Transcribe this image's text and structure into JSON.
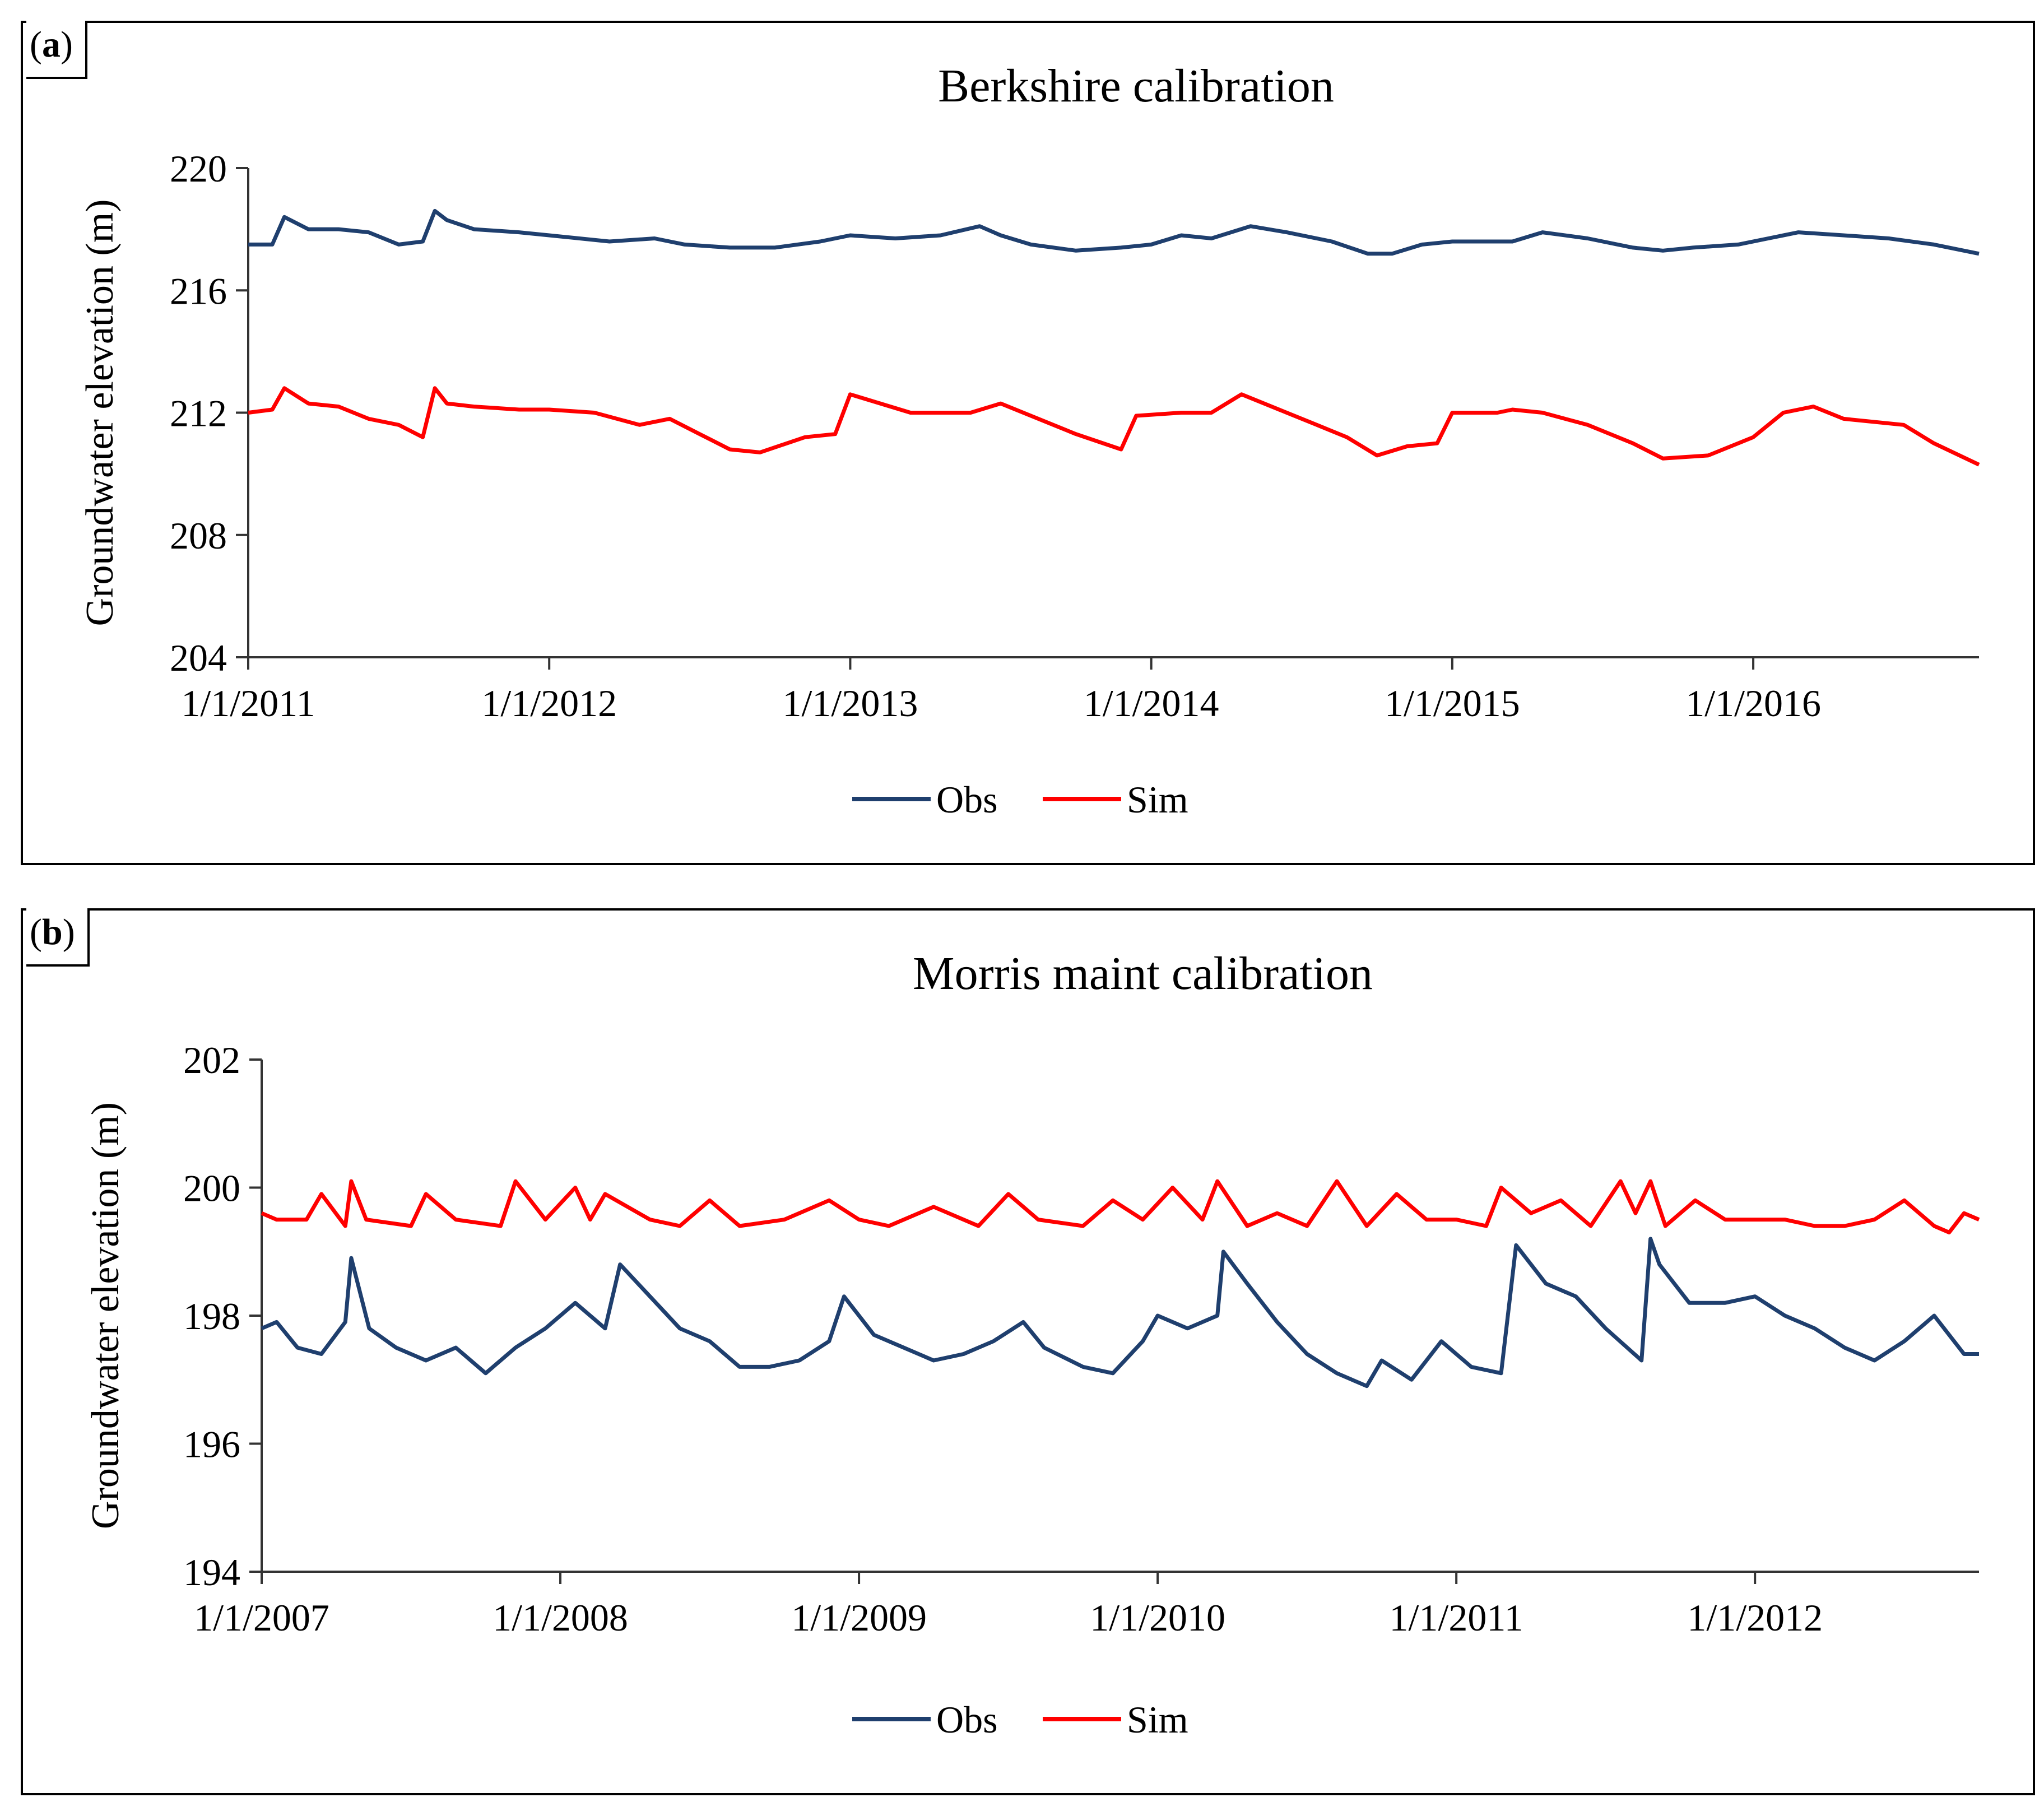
{
  "chart_data": [
    {
      "type": "line",
      "panel_label": "a",
      "title": "Berkshire calibration",
      "xlabel": "",
      "ylabel": "Groundwater elevation (m)",
      "ylim": [
        204,
        220
      ],
      "yticks": [
        204,
        208,
        212,
        216,
        220
      ],
      "xlim": [
        2011.0,
        2016.75
      ],
      "xticks": [
        {
          "value": 2011.0,
          "label": "1/1/2011"
        },
        {
          "value": 2012.0,
          "label": "1/1/2012"
        },
        {
          "value": 2013.0,
          "label": "1/1/2013"
        },
        {
          "value": 2014.0,
          "label": "1/1/2014"
        },
        {
          "value": 2015.0,
          "label": "1/1/2015"
        },
        {
          "value": 2016.0,
          "label": "1/1/2016"
        }
      ],
      "legend": [
        "Obs",
        "Sim"
      ],
      "series": [
        {
          "name": "Obs",
          "color": "#1f3f6e",
          "x": [
            2011.0,
            2011.08,
            2011.12,
            2011.2,
            2011.3,
            2011.4,
            2011.5,
            2011.58,
            2011.62,
            2011.66,
            2011.75,
            2011.9,
            2012.0,
            2012.2,
            2012.35,
            2012.45,
            2012.6,
            2012.75,
            2012.9,
            2013.0,
            2013.15,
            2013.3,
            2013.43,
            2013.5,
            2013.6,
            2013.75,
            2013.9,
            2014.0,
            2014.1,
            2014.2,
            2014.33,
            2014.45,
            2014.6,
            2014.72,
            2014.8,
            2014.9,
            2015.0,
            2015.1,
            2015.2,
            2015.3,
            2015.45,
            2015.6,
            2015.7,
            2015.8,
            2015.95,
            2016.05,
            2016.15,
            2016.3,
            2016.45,
            2016.6,
            2016.75
          ],
          "y": [
            217.5,
            217.5,
            218.4,
            218.0,
            218.0,
            217.9,
            217.5,
            217.6,
            218.6,
            218.3,
            218.0,
            217.9,
            217.8,
            217.6,
            217.7,
            217.5,
            217.4,
            217.4,
            217.6,
            217.8,
            217.7,
            217.8,
            218.1,
            217.8,
            217.5,
            217.3,
            217.4,
            217.5,
            217.8,
            217.7,
            218.1,
            217.9,
            217.6,
            217.2,
            217.2,
            217.5,
            217.6,
            217.6,
            217.6,
            217.9,
            217.7,
            217.4,
            217.3,
            217.4,
            217.5,
            217.7,
            217.9,
            217.8,
            217.7,
            217.5,
            217.2
          ]
        },
        {
          "name": "Sim",
          "color": "#ff0000",
          "x": [
            2011.0,
            2011.08,
            2011.12,
            2011.2,
            2011.3,
            2011.4,
            2011.5,
            2011.58,
            2011.62,
            2011.66,
            2011.75,
            2011.9,
            2012.0,
            2012.15,
            2012.3,
            2012.4,
            2012.5,
            2012.6,
            2012.7,
            2012.85,
            2012.95,
            2013.0,
            2013.2,
            2013.4,
            2013.5,
            2013.6,
            2013.75,
            2013.9,
            2013.95,
            2014.1,
            2014.2,
            2014.3,
            2014.45,
            2014.55,
            2014.65,
            2014.75,
            2014.85,
            2014.95,
            2015.0,
            2015.15,
            2015.2,
            2015.3,
            2015.45,
            2015.6,
            2015.7,
            2015.85,
            2016.0,
            2016.1,
            2016.2,
            2016.3,
            2016.5,
            2016.6,
            2016.75
          ],
          "y": [
            212.0,
            212.1,
            212.8,
            212.3,
            212.2,
            211.8,
            211.6,
            211.2,
            212.8,
            212.3,
            212.2,
            212.1,
            212.1,
            212.0,
            211.6,
            211.8,
            211.3,
            210.8,
            210.7,
            211.2,
            211.3,
            212.6,
            212.0,
            212.0,
            212.3,
            211.9,
            211.3,
            210.8,
            211.9,
            212.0,
            212.0,
            212.6,
            212.0,
            211.6,
            211.2,
            210.6,
            210.9,
            211.0,
            212.0,
            212.0,
            212.1,
            212.0,
            211.6,
            211.0,
            210.5,
            210.6,
            211.2,
            212.0,
            212.2,
            211.8,
            211.6,
            211.0,
            210.3
          ]
        }
      ]
    },
    {
      "type": "line",
      "panel_label": "b",
      "title": "Morris maint calibration",
      "xlabel": "",
      "ylabel": "Groundwater elevation (m)",
      "ylim": [
        194,
        202
      ],
      "yticks": [
        194,
        196,
        198,
        200,
        202
      ],
      "xlim": [
        2007.0,
        2012.75
      ],
      "xticks": [
        {
          "value": 2007.0,
          "label": "1/1/2007"
        },
        {
          "value": 2008.0,
          "label": "1/1/2008"
        },
        {
          "value": 2009.0,
          "label": "1/1/2009"
        },
        {
          "value": 2010.0,
          "label": "1/1/2010"
        },
        {
          "value": 2011.0,
          "label": "1/1/2011"
        },
        {
          "value": 2012.0,
          "label": "1/1/2012"
        }
      ],
      "legend": [
        "Obs",
        "Sim"
      ],
      "series": [
        {
          "name": "Obs",
          "color": "#1f3f6e",
          "x": [
            2007.0,
            2007.05,
            2007.12,
            2007.2,
            2007.28,
            2007.3,
            2007.36,
            2007.45,
            2007.55,
            2007.65,
            2007.75,
            2007.85,
            2007.95,
            2008.05,
            2008.15,
            2008.2,
            2008.3,
            2008.4,
            2008.5,
            2008.6,
            2008.7,
            2008.8,
            2008.9,
            2008.95,
            2009.05,
            2009.15,
            2009.25,
            2009.35,
            2009.45,
            2009.55,
            2009.62,
            2009.75,
            2009.85,
            2009.95,
            2010.0,
            2010.1,
            2010.2,
            2010.22,
            2010.3,
            2010.4,
            2010.5,
            2010.6,
            2010.7,
            2010.75,
            2010.85,
            2010.95,
            2011.05,
            2011.15,
            2011.2,
            2011.3,
            2011.4,
            2011.5,
            2011.62,
            2011.65,
            2011.68,
            2011.78,
            2011.9,
            2012.0,
            2012.1,
            2012.2,
            2012.3,
            2012.4,
            2012.5,
            2012.6,
            2012.7,
            2012.75
          ],
          "y": [
            197.8,
            197.9,
            197.5,
            197.4,
            197.9,
            198.9,
            197.8,
            197.5,
            197.3,
            197.5,
            197.1,
            197.5,
            197.8,
            198.2,
            197.8,
            198.8,
            198.3,
            197.8,
            197.6,
            197.2,
            197.2,
            197.3,
            197.6,
            198.3,
            197.7,
            197.5,
            197.3,
            197.4,
            197.6,
            197.9,
            197.5,
            197.2,
            197.1,
            197.6,
            198.0,
            197.8,
            198.0,
            199.0,
            198.5,
            197.9,
            197.4,
            197.1,
            196.9,
            197.3,
            197.0,
            197.6,
            197.2,
            197.1,
            199.1,
            198.5,
            198.3,
            197.8,
            197.3,
            199.2,
            198.8,
            198.2,
            198.2,
            198.3,
            198.0,
            197.8,
            197.5,
            197.3,
            197.6,
            198.0,
            197.4,
            197.4
          ]
        },
        {
          "name": "Sim",
          "color": "#ff0000",
          "x": [
            2007.0,
            2007.05,
            2007.15,
            2007.2,
            2007.28,
            2007.3,
            2007.35,
            2007.5,
            2007.55,
            2007.65,
            2007.8,
            2007.85,
            2007.95,
            2008.05,
            2008.1,
            2008.15,
            2008.3,
            2008.4,
            2008.5,
            2008.6,
            2008.75,
            2008.9,
            2009.0,
            2009.1,
            2009.25,
            2009.4,
            2009.5,
            2009.6,
            2009.75,
            2009.85,
            2009.95,
            2010.05,
            2010.15,
            2010.2,
            2010.3,
            2010.4,
            2010.5,
            2010.6,
            2010.7,
            2010.8,
            2010.9,
            2011.0,
            2011.1,
            2011.15,
            2011.25,
            2011.35,
            2011.45,
            2011.55,
            2011.6,
            2011.65,
            2011.7,
            2011.8,
            2011.9,
            2012.0,
            2012.1,
            2012.2,
            2012.3,
            2012.4,
            2012.5,
            2012.6,
            2012.65,
            2012.7,
            2012.75
          ],
          "y": [
            199.6,
            199.5,
            199.5,
            199.9,
            199.4,
            200.1,
            199.5,
            199.4,
            199.9,
            199.5,
            199.4,
            200.1,
            199.5,
            200.0,
            199.5,
            199.9,
            199.5,
            199.4,
            199.8,
            199.4,
            199.5,
            199.8,
            199.5,
            199.4,
            199.7,
            199.4,
            199.9,
            199.5,
            199.4,
            199.8,
            199.5,
            200.0,
            199.5,
            200.1,
            199.4,
            199.6,
            199.4,
            200.1,
            199.4,
            199.9,
            199.5,
            199.5,
            199.4,
            200.0,
            199.6,
            199.8,
            199.4,
            200.1,
            199.6,
            200.1,
            199.4,
            199.8,
            199.5,
            199.5,
            199.5,
            199.4,
            199.4,
            199.5,
            199.8,
            199.4,
            199.3,
            199.6,
            199.5
          ]
        }
      ]
    }
  ]
}
